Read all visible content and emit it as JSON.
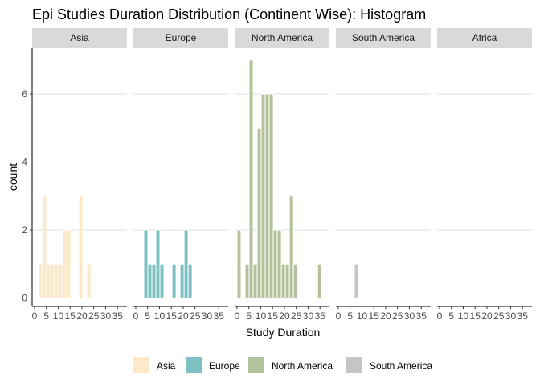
{
  "chart_data": {
    "type": "bar",
    "title": "Epi Studies Duration Distribution (Continent Wise): Histogram",
    "xlabel": "Study Duration",
    "ylabel": "count",
    "xlim": [
      -1,
      39
    ],
    "ylim": [
      -0.25,
      7.35
    ],
    "x_ticks": [
      0,
      5,
      10,
      15,
      20,
      25,
      30,
      35
    ],
    "y_ticks": [
      0,
      2,
      4,
      6
    ],
    "bin_width": 1.7,
    "grid": true,
    "legend_position": "bottom",
    "facets": [
      "Asia",
      "Europe",
      "North America",
      "South America",
      "Africa"
    ],
    "series": [
      {
        "name": "Asia",
        "color": "#FDE8C8",
        "x": [
          1.7,
          3.4,
          5.1,
          6.8,
          8.5,
          10.2,
          11.9,
          13.6,
          15.3,
          18.7,
          22.1
        ],
        "values": [
          1,
          3,
          1,
          1,
          1,
          1,
          2,
          2,
          0,
          3,
          1
        ]
      },
      {
        "name": "Europe",
        "color": "#7DC2C3",
        "x": [
          3.4,
          5.1,
          6.8,
          8.5,
          10.2,
          15.3,
          18.7,
          20.4,
          22.1
        ],
        "values": [
          2,
          1,
          1,
          2,
          1,
          1,
          1,
          2,
          1
        ]
      },
      {
        "name": "North America",
        "color": "#B3C29C",
        "x": [
          0.0,
          3.4,
          5.1,
          6.8,
          8.5,
          10.2,
          11.9,
          13.6,
          15.3,
          17.0,
          18.7,
          20.4,
          22.1,
          23.8,
          27.2,
          34.0
        ],
        "values": [
          2,
          1,
          7,
          1,
          5,
          6,
          6,
          6,
          2,
          2,
          1,
          1,
          3,
          1,
          0,
          1
        ]
      },
      {
        "name": "South America",
        "color": "#C3C5C7",
        "x": [
          6.8
        ],
        "values": [
          1
        ]
      }
    ]
  }
}
